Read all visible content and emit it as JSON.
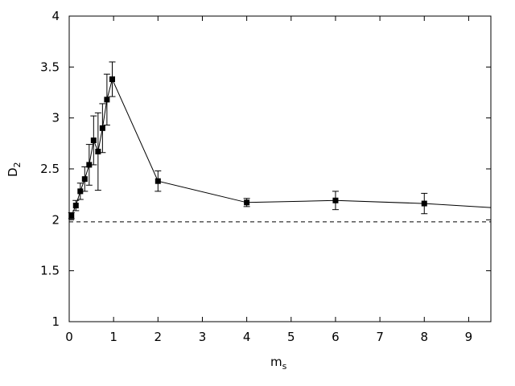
{
  "chart_data": {
    "type": "scatter",
    "title": "",
    "xlabel": "m",
    "xlabel_sub": "s",
    "ylabel": "D",
    "ylabel_sub": "2",
    "xlim": [
      0,
      9.5
    ],
    "ylim": [
      1,
      4
    ],
    "x_ticks": [
      0,
      1,
      2,
      3,
      4,
      5,
      6,
      7,
      8,
      9
    ],
    "y_ticks": [
      1,
      1.5,
      2,
      2.5,
      3,
      3.5,
      4
    ],
    "grid": false,
    "series": [
      {
        "line": "solid",
        "marker": "square",
        "color": "#000000",
        "points": [
          {
            "x": 0.05,
            "y": 2.04,
            "err": 0.03
          },
          {
            "x": 0.15,
            "y": 2.14,
            "err": 0.05
          },
          {
            "x": 0.25,
            "y": 2.28,
            "err": 0.08
          },
          {
            "x": 0.35,
            "y": 2.4,
            "err": 0.12
          },
          {
            "x": 0.45,
            "y": 2.54,
            "err": 0.2
          },
          {
            "x": 0.55,
            "y": 2.78,
            "err": 0.24
          },
          {
            "x": 0.65,
            "y": 2.67,
            "err": 0.38
          },
          {
            "x": 0.75,
            "y": 2.9,
            "err": 0.24
          },
          {
            "x": 0.85,
            "y": 3.18,
            "err": 0.25
          },
          {
            "x": 0.97,
            "y": 3.38,
            "err": 0.17
          },
          {
            "x": 2.0,
            "y": 2.38,
            "err": 0.1
          },
          {
            "x": 4.0,
            "y": 2.17,
            "err": 0.04
          },
          {
            "x": 6.0,
            "y": 2.19,
            "err": 0.09
          },
          {
            "x": 8.0,
            "y": 2.16,
            "err": 0.1
          },
          {
            "x": 9.5,
            "y": 2.12,
            "err": 0
          }
        ]
      }
    ],
    "reference_lines": [
      {
        "orientation": "horizontal",
        "y": 1.98,
        "style": "dashed",
        "color": "#000000"
      }
    ]
  }
}
